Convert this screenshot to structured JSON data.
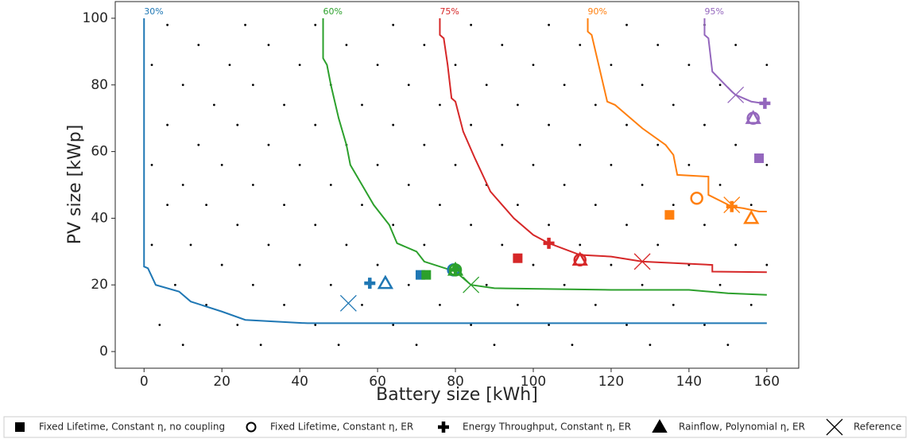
{
  "chart_data": {
    "type": "scatter",
    "xlabel": "Battery size [kWh]",
    "ylabel": "PV size [kWp]",
    "xlim": [
      -7.4,
      168.2
    ],
    "ylim": [
      -5,
      105
    ],
    "xticks": [
      0,
      20,
      40,
      60,
      80,
      100,
      120,
      140,
      160
    ],
    "yticks": [
      0,
      20,
      40,
      60,
      80,
      100
    ],
    "dots": {
      "color": "#000000",
      "x": [
        10,
        30,
        50,
        70,
        90,
        110,
        130,
        150,
        4,
        24,
        44,
        64,
        84,
        104,
        124,
        144,
        16,
        36,
        56,
        76,
        96,
        116,
        136,
        156,
        8,
        28,
        48,
        68,
        88,
        108,
        128,
        148,
        20,
        40,
        60,
        80,
        100,
        120,
        140,
        160,
        2,
        12,
        32,
        52,
        72,
        92,
        112,
        132,
        152,
        24,
        44,
        64,
        84,
        104,
        124,
        144,
        6,
        16,
        36,
        56,
        76,
        96,
        116,
        136,
        156,
        10,
        28,
        48,
        68,
        88,
        108,
        128,
        148,
        2,
        20,
        40,
        60,
        80,
        100,
        120,
        140,
        160,
        14,
        32,
        52,
        72,
        92,
        112,
        132,
        152,
        6,
        24,
        44,
        64,
        84,
        104,
        124,
        144,
        18,
        36,
        56,
        76,
        96,
        116,
        136,
        10,
        28,
        48,
        68,
        88,
        108,
        128,
        148,
        2,
        22,
        40,
        60,
        80,
        100,
        120,
        140,
        160,
        14,
        32,
        52,
        72,
        92,
        112,
        132,
        152,
        6,
        26,
        44,
        64,
        84,
        104,
        124,
        144
      ],
      "y": [
        2,
        2,
        2,
        2,
        2,
        2,
        2,
        2,
        8,
        8,
        8,
        8,
        8,
        8,
        8,
        8,
        14,
        14,
        14,
        14,
        14,
        14,
        14,
        14,
        20,
        20,
        20,
        20,
        20,
        20,
        20,
        20,
        26,
        26,
        26,
        26,
        26,
        26,
        26,
        26,
        32,
        32,
        32,
        32,
        32,
        32,
        32,
        32,
        32,
        38,
        38,
        38,
        38,
        38,
        38,
        38,
        44,
        44,
        44,
        44,
        44,
        44,
        44,
        44,
        44,
        50,
        50,
        50,
        50,
        50,
        50,
        50,
        50,
        56,
        56,
        56,
        56,
        56,
        56,
        56,
        56,
        56,
        62,
        62,
        62,
        62,
        62,
        62,
        62,
        62,
        68,
        68,
        68,
        68,
        68,
        68,
        68,
        68,
        74,
        74,
        74,
        74,
        74,
        74,
        74,
        80,
        80,
        80,
        80,
        80,
        80,
        80,
        80,
        86,
        86,
        86,
        86,
        86,
        86,
        86,
        86,
        86,
        92,
        92,
        92,
        92,
        92,
        92,
        92,
        92,
        98,
        98,
        98,
        98,
        98,
        98,
        98,
        98
      ]
    },
    "series": [
      {
        "name": "30%",
        "color": "#1f77b4",
        "x": [
          0,
          0,
          0,
          0,
          1,
          3,
          9,
          12,
          20,
          26,
          40,
          42,
          160
        ],
        "y": [
          100,
          75,
          50,
          25.5,
          25,
          20,
          18,
          15,
          12,
          9.5,
          8.6,
          8.5,
          8.5
        ]
      },
      {
        "name": "60%",
        "color": "#2ca02c",
        "x": [
          46,
          46,
          47,
          48,
          50,
          52,
          53,
          56,
          59,
          63,
          65,
          70,
          72,
          80,
          84,
          90,
          120,
          140,
          150,
          160
        ],
        "y": [
          100,
          88,
          86,
          80,
          70,
          62,
          56,
          50,
          44,
          38,
          32.5,
          30,
          27,
          24,
          20,
          19,
          18.5,
          18.5,
          17.5,
          17
        ]
      },
      {
        "name": "75%",
        "color": "#d62728",
        "x": [
          76,
          76,
          77,
          78,
          79,
          80,
          82,
          85,
          89,
          95,
          100,
          104,
          112,
          120,
          128,
          146,
          146,
          160
        ],
        "y": [
          100,
          95,
          94,
          86,
          76,
          75,
          66,
          58,
          48,
          40,
          35,
          32.5,
          29,
          28.5,
          27,
          26,
          24,
          23.8
        ]
      },
      {
        "name": "90%",
        "color": "#ff7f0e",
        "x": [
          114,
          114,
          115,
          117,
          119,
          121,
          128,
          134,
          136,
          137,
          145,
          145,
          151,
          154,
          158,
          160
        ],
        "y": [
          100,
          96,
          95,
          85,
          75,
          74,
          67,
          62,
          59,
          53,
          52.5,
          47,
          43.5,
          43,
          42,
          42
        ]
      },
      {
        "name": "95%",
        "color": "#9467bd",
        "x": [
          144,
          144,
          145,
          146,
          151,
          152,
          156,
          159
        ],
        "y": [
          100,
          95,
          94,
          84,
          78,
          77,
          75,
          74.5
        ]
      }
    ],
    "markers": [
      {
        "name": "Fixed Lifetime, Constant η, no coupling",
        "shape": "square",
        "colors": [
          "#1f77b4",
          "#2ca02c",
          "#d62728",
          "#ff7f0e",
          "#9467bd"
        ],
        "x": [
          71,
          72.5,
          96,
          135,
          158
        ],
        "y": [
          23,
          23,
          28,
          41,
          58
        ]
      },
      {
        "name": "Fixed Lifetime, Constant η, ER",
        "shape": "circle",
        "colors": [
          "#1f77b4",
          "#2ca02c",
          "#d62728",
          "#ff7f0e",
          "#9467bd"
        ],
        "x": [
          79.5,
          80,
          112,
          142,
          156.5
        ],
        "y": [
          24.5,
          24.5,
          27.5,
          46,
          70
        ]
      },
      {
        "name": "Energy Throughput, Constant η, ER",
        "shape": "plus",
        "colors": [
          "#1f77b4",
          "#2ca02c",
          "#d62728",
          "#ff7f0e",
          "#9467bd"
        ],
        "x": [
          58,
          80,
          104,
          151,
          159.5
        ],
        "y": [
          20.5,
          24.5,
          32.5,
          43.5,
          74.5
        ]
      },
      {
        "name": "Rainflow, Polynomial η, ER",
        "shape": "triangle",
        "colors": [
          "#1f77b4",
          "#2ca02c",
          "#d62728",
          "#ff7f0e",
          "#9467bd"
        ],
        "x": [
          62,
          80,
          112,
          156,
          156.5
        ],
        "y": [
          20.5,
          24.5,
          27.5,
          40,
          70
        ]
      },
      {
        "name": "Reference",
        "shape": "x",
        "colors": [
          "#1f77b4",
          "#2ca02c",
          "#d62728",
          "#ff7f0e",
          "#9467bd"
        ],
        "x": [
          52.5,
          84,
          128,
          151,
          152
        ],
        "y": [
          14.5,
          20,
          27,
          44,
          77
        ]
      }
    ]
  }
}
